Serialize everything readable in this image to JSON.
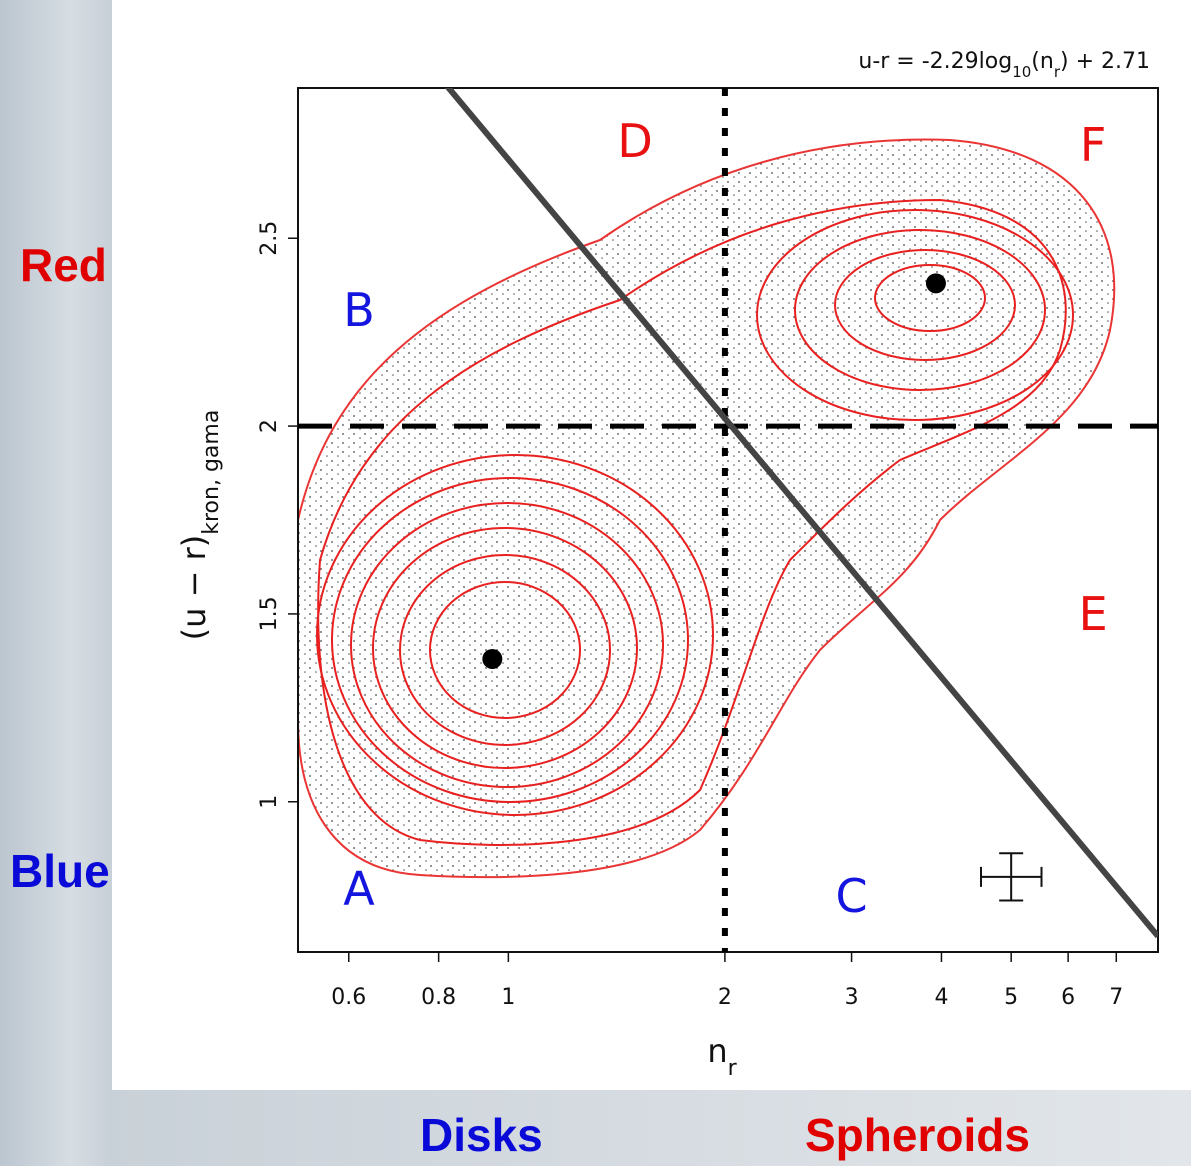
{
  "chart_data": {
    "type": "scatter",
    "x_scale": "log",
    "xlim": [
      0.51,
      8.0
    ],
    "ylim": [
      0.6,
      2.9
    ],
    "xticks": [
      0.6,
      0.8,
      1,
      2,
      3,
      4,
      5,
      6,
      7
    ],
    "yticks": [
      1,
      1.5,
      2,
      2.5
    ],
    "xlabel": {
      "main": "n",
      "sub": "r"
    },
    "ylabel": {
      "main": "(u − r)",
      "sub": "kron, gama"
    },
    "equation": [
      "u-r = -2.29log",
      "10",
      "(n",
      "r",
      ") + 2.71"
    ],
    "fit_line": {
      "slope": -2.29,
      "intercept": 2.71,
      "color": "#444444"
    },
    "divider_x": 2,
    "divider_y": 2,
    "peaks": {
      "x": [
        0.95,
        3.93
      ],
      "y": [
        1.38,
        2.38
      ]
    },
    "error_bar": {
      "x": 5.0,
      "y": 0.8,
      "x_low": 4.54,
      "x_high": 5.51,
      "y_err": 0.063
    },
    "regions": [
      {
        "text": "A",
        "x": 0.62,
        "y": 0.76,
        "color": "#1515e0"
      },
      {
        "text": "B",
        "x": 0.62,
        "y": 2.3,
        "color": "#1515e0"
      },
      {
        "text": "C",
        "x": 3.0,
        "y": 0.74,
        "color": "#1515e0"
      },
      {
        "text": "D",
        "x": 1.5,
        "y": 2.75,
        "color": "#e81010"
      },
      {
        "text": "E",
        "x": 6.5,
        "y": 1.49,
        "color": "#e81010"
      },
      {
        "text": "F",
        "x": 6.5,
        "y": 2.74,
        "color": "#e81010"
      }
    ]
  },
  "slide_labels": {
    "red": {
      "text": "Red",
      "color": "#e00000"
    },
    "blue": {
      "text": "Blue",
      "color": "#0a0ad8"
    },
    "disks": {
      "text": "Disks",
      "color": "#0a0ad8"
    },
    "spheroids": {
      "text": "Spheroids",
      "color": "#e00000"
    }
  }
}
